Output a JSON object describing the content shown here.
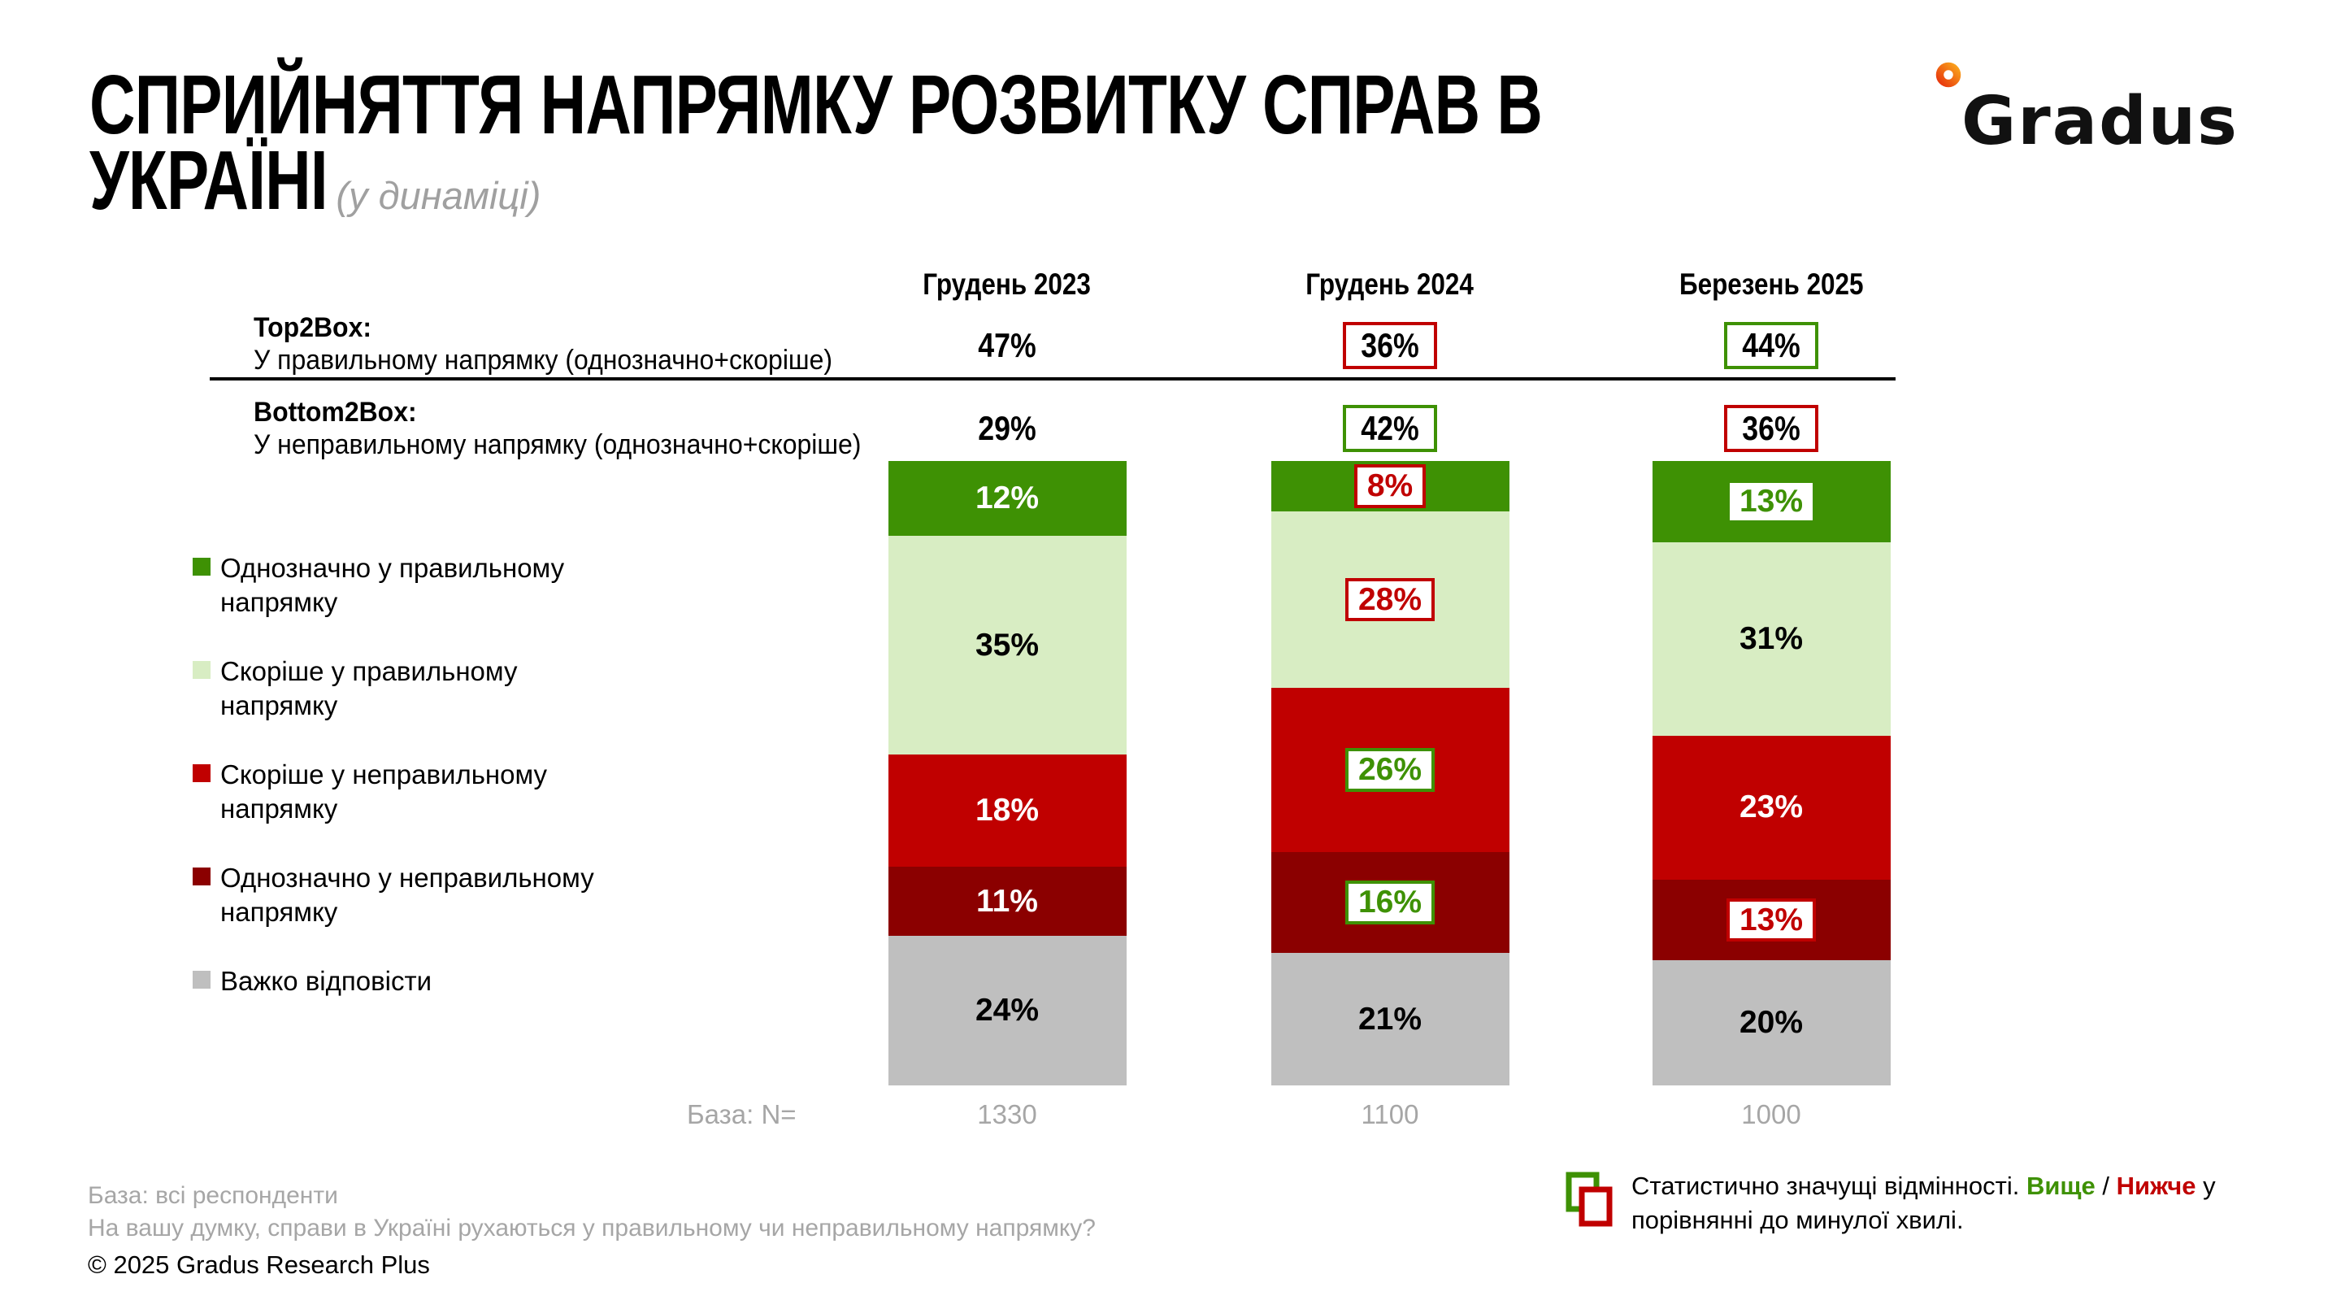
{
  "header": {
    "title_lines": [
      "СПРИЙНЯТТЯ НАПРЯМКУ РОЗВИТКУ СПРАВ В",
      "УКРАЇНІ"
    ],
    "subtitle": "(у динаміці)",
    "logo_text": "Gradus"
  },
  "summary_rows": [
    {
      "name": "Top2Box:",
      "description": "У правильному напрямку (однозначно+скоріше)",
      "values": [
        {
          "text": "47%",
          "box": "none"
        },
        {
          "text": "36%",
          "box": "red"
        },
        {
          "text": "44%",
          "box": "green"
        }
      ]
    },
    {
      "name": "Bottom2Box:",
      "description": "У неправильному напрямку (однозначно+скоріше)",
      "values": [
        {
          "text": "29%",
          "box": "none"
        },
        {
          "text": "42%",
          "box": "green"
        },
        {
          "text": "36%",
          "box": "red"
        }
      ]
    }
  ],
  "legend": [
    {
      "label": "Однозначно у правильному напрямку",
      "color": "#3E9104"
    },
    {
      "label": "Скоріше у правильному напрямку",
      "color": "#D8EDC3"
    },
    {
      "label": "Скоріше у неправильному напрямку",
      "color": "#C00000"
    },
    {
      "label": "Однозначно у неправильному напрямку",
      "color": "#8B0000"
    },
    {
      "label": "Важко відповісти",
      "color": "#BFBFBF"
    }
  ],
  "chart_data": {
    "type": "bar",
    "stacked": true,
    "grid": false,
    "legend_position": "left",
    "categories": [
      "Грудень 2023",
      "Грудень 2024",
      "Березень 2025"
    ],
    "series": [
      {
        "name": "Однозначно у правильному напрямку",
        "color": "#3E9104",
        "values": [
          12,
          8,
          13
        ]
      },
      {
        "name": "Скоріше у правильному напрямку",
        "color": "#D8EDC3",
        "values": [
          35,
          28,
          31
        ]
      },
      {
        "name": "Скоріше у неправильному напрямку",
        "color": "#C00000",
        "values": [
          18,
          26,
          23
        ]
      },
      {
        "name": "Однозначно у неправильному напрямку",
        "color": "#8B0000",
        "values": [
          11,
          16,
          13
        ]
      },
      {
        "name": "Важко відповісти",
        "color": "#BFBFBF",
        "values": [
          24,
          21,
          20
        ]
      }
    ],
    "label_styles": [
      [
        "white",
        "black",
        "white",
        "white",
        "black"
      ],
      [
        "box-red",
        "box-red",
        "box-green",
        "box-green",
        "black"
      ],
      [
        "box-plain-green",
        "black",
        "white",
        "box-red",
        "black"
      ]
    ],
    "top2box": [
      47,
      36,
      44
    ],
    "bottom2box": [
      29,
      42,
      36
    ],
    "bases": [
      "1330",
      "1100",
      "1000"
    ]
  },
  "base_row": {
    "label": "База: N="
  },
  "footer": {
    "base_note": "База: всі респонденти",
    "question": "На вашу думку, справи в Україні рухаються у правильному чи неправильному напрямку?",
    "copyright": "© 2025 Gradus Research Plus"
  },
  "significance": {
    "prefix": "Статистично значущі відмінності. ",
    "higher": "Вище",
    "separator": " / ",
    "lower": "Нижче",
    "suffix": " у порівнянні до минулої хвилі."
  }
}
